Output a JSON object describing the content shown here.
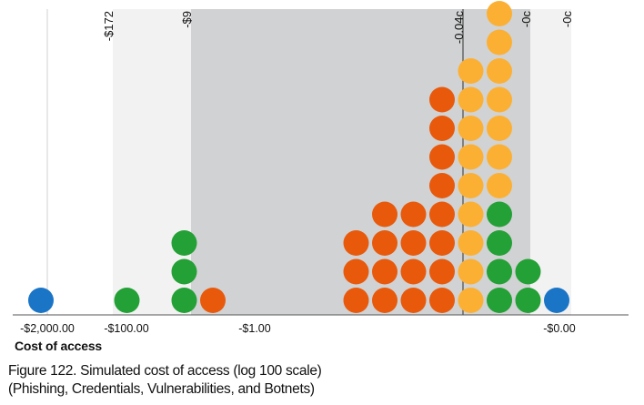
{
  "chart_data": {
    "type": "dot-histogram",
    "x_axis": {
      "label": "Cost of access",
      "scale": "log 100",
      "ticks": [
        "-$2,000.00",
        "-$100.00",
        "-$1.00",
        "-$0.00"
      ]
    },
    "band_labels": [
      "-$172",
      "-$9",
      "-0.04c",
      "-0c",
      "-0c"
    ],
    "series": [
      {
        "color": "#1a75c7",
        "counts": [
          1,
          0,
          0,
          0,
          0,
          0,
          0,
          0,
          0,
          0,
          0,
          0,
          0,
          0,
          0,
          0,
          0,
          0,
          1
        ]
      },
      {
        "color": "#23a036",
        "counts": [
          0,
          0,
          0,
          1,
          0,
          3,
          0,
          0,
          0,
          0,
          0,
          0,
          0,
          0,
          0,
          0,
          4,
          2,
          0
        ]
      },
      {
        "color": "#e8590c",
        "counts": [
          0,
          0,
          0,
          0,
          0,
          0,
          1,
          0,
          0,
          0,
          0,
          3,
          4,
          4,
          8,
          0,
          0,
          0,
          0
        ]
      },
      {
        "color": "#fbb034",
        "counts": [
          0,
          0,
          0,
          0,
          0,
          0,
          0,
          0,
          0,
          0,
          0,
          0,
          0,
          0,
          0,
          9,
          8,
          0,
          0
        ]
      }
    ],
    "grid": true
  },
  "caption": {
    "line1": "Figure 122. Simulated cost of access (log 100 scale)",
    "line2": "(Phishing, Credentials, Vulnerabilities, and Botnets)"
  }
}
